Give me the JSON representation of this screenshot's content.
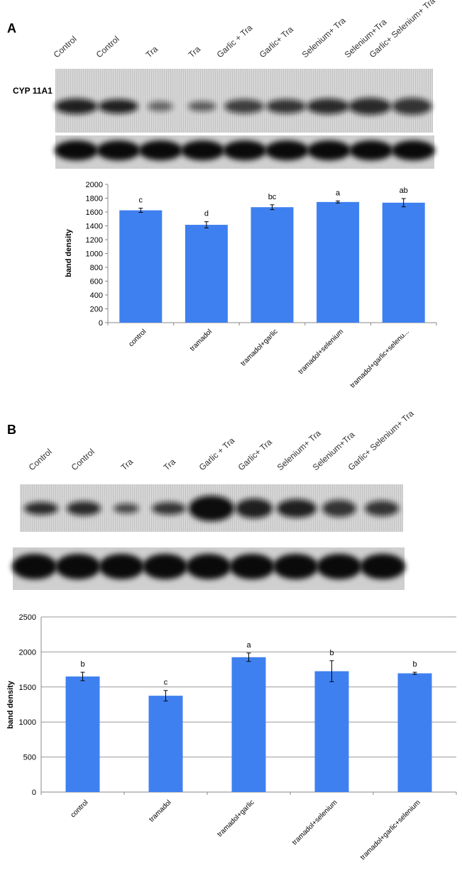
{
  "blots": [
    {
      "panel": "A",
      "protein": "CYP 11A1",
      "lanes": [
        "Control",
        "Control",
        "Tra",
        "Tra",
        "Garlic + Tra",
        "Garlic+ Tra",
        "Selenium+ Tra",
        "Selenium+Tra",
        "Garlic+ Selenium+ Tra"
      ]
    },
    {
      "panel": "B",
      "lanes": [
        "Control",
        "Control",
        "Tra",
        "Tra",
        "Garlic + Tra",
        "Garlic+ Tra",
        "Selenium+ Tra",
        "Selenium+Tra",
        "Garlic+ Selenium+ Tra"
      ]
    }
  ],
  "chart_data": [
    {
      "type": "bar",
      "y_label": "band density",
      "categories": [
        "control",
        "tramadol",
        "tramadol+garlic",
        "tramadol+selenium",
        "tramadol+garlic+selenu..."
      ],
      "values": [
        1625,
        1415,
        1670,
        1745,
        1735
      ],
      "errors": [
        30,
        45,
        35,
        15,
        60
      ],
      "letters": [
        "c",
        "d",
        "bc",
        "a",
        "ab"
      ],
      "color": "#3f80f0",
      "ylim": [
        0,
        2000
      ],
      "yticks": [
        0,
        200,
        400,
        600,
        800,
        1000,
        1200,
        1400,
        1600,
        1800,
        2000
      ],
      "grid": false
    },
    {
      "type": "bar",
      "y_label": "band density",
      "categories": [
        "control",
        "tramadol",
        "tramadol+garlic",
        "tramadol+selenium",
        "tramadol+garlic+selenium"
      ],
      "values": [
        1650,
        1375,
        1925,
        1725,
        1695
      ],
      "errors": [
        60,
        75,
        60,
        150,
        15
      ],
      "letters": [
        "b",
        "c",
        "a",
        "b",
        "b"
      ],
      "color": "#3f80f0",
      "ylim": [
        0,
        2500
      ],
      "yticks": [
        0,
        500,
        1000,
        1500,
        2000,
        2500
      ],
      "grid": true
    }
  ]
}
